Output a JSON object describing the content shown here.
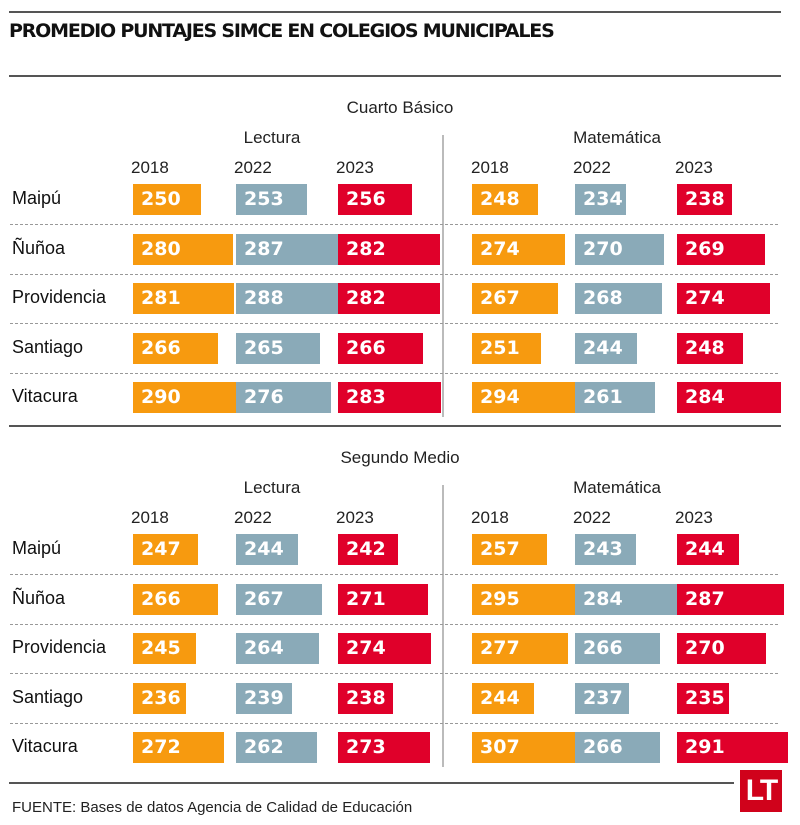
{
  "header": {
    "title": "PROMEDIO PUNTAJES SIMCE EN COLEGIOS MUNICIPALES"
  },
  "footer": {
    "source": "FUENTE: Bases de datos Agencia de Calidad de Educación",
    "logo": "LT"
  },
  "colors": {
    "2018": "#f79a0f",
    "2022": "#8aaab8",
    "2023": "#e0002a"
  },
  "chart_data": {
    "type": "table",
    "title": "PROMEDIO PUNTAJES SIMCE EN COLEGIOS MUNICIPALES",
    "years": [
      "2018",
      "2022",
      "2023"
    ],
    "schools": [
      "Maipú",
      "Ñuñoa",
      "Providencia",
      "Santiago",
      "Vitacura"
    ],
    "sections": [
      {
        "name": "Cuarto Básico",
        "subjects": [
          {
            "name": "Lectura",
            "values": [
              [
                250,
                253,
                256
              ],
              [
                280,
                287,
                282
              ],
              [
                281,
                288,
                282
              ],
              [
                266,
                265,
                266
              ],
              [
                290,
                276,
                283
              ]
            ]
          },
          {
            "name": "Matemática",
            "values": [
              [
                248,
                234,
                238
              ],
              [
                274,
                270,
                269
              ],
              [
                267,
                268,
                274
              ],
              [
                251,
                244,
                248
              ],
              [
                294,
                261,
                284
              ]
            ]
          }
        ]
      },
      {
        "name": "Segundo Medio",
        "subjects": [
          {
            "name": "Lectura",
            "values": [
              [
                247,
                244,
                242
              ],
              [
                266,
                267,
                271
              ],
              [
                245,
                264,
                274
              ],
              [
                236,
                239,
                238
              ],
              [
                272,
                262,
                273
              ]
            ]
          },
          {
            "name": "Matemática",
            "values": [
              [
                257,
                243,
                244
              ],
              [
                295,
                284,
                287
              ],
              [
                277,
                266,
                270
              ],
              [
                244,
                237,
                235
              ],
              [
                307,
                266,
                291
              ]
            ]
          }
        ]
      }
    ]
  }
}
